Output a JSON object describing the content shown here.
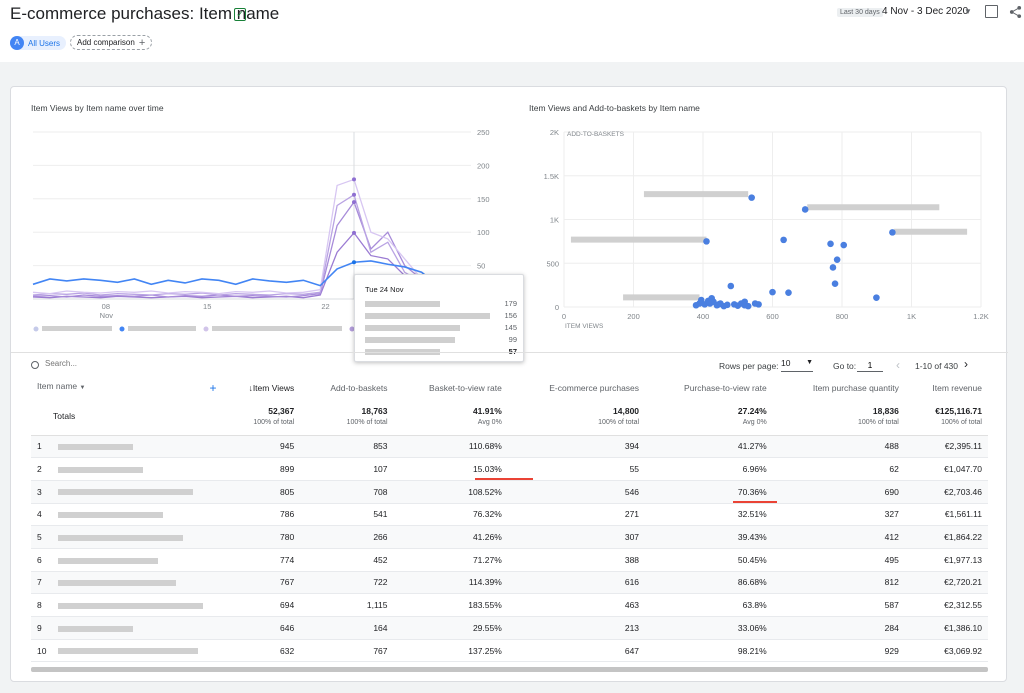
{
  "header": {
    "title": "E-commerce purchases: Item name",
    "date_label": "Last 30 days",
    "date_range": "4 Nov - 3 Dec 2020",
    "segment_avatar": "A",
    "segment_label": "All Users",
    "add_comparison": "Add comparison"
  },
  "line_chart": {
    "title": "Item Views by Item name over time",
    "x_ticks": [
      "08",
      "15",
      "22"
    ],
    "x_month": "Nov",
    "y_ticks": [
      "250",
      "200",
      "150",
      "100",
      "50"
    ],
    "chart_data": {
      "type": "line",
      "ylim": [
        0,
        250
      ],
      "series": [
        {
          "color": "#4285f4",
          "values": [
            22,
            30,
            27,
            30,
            28,
            25,
            30,
            22,
            28,
            24,
            30,
            28,
            22,
            30,
            27,
            25,
            28,
            20,
            45,
            55,
            57,
            52,
            48,
            40,
            20
          ]
        },
        {
          "color": "#d7c6f2",
          "values": [
            10,
            8,
            12,
            10,
            9,
            11,
            10,
            12,
            9,
            11,
            10,
            8,
            11,
            10,
            12,
            9,
            10,
            14,
            170,
            179,
            100,
            90,
            60,
            30,
            10
          ]
        },
        {
          "color": "#b9a3e3",
          "values": [
            6,
            8,
            7,
            9,
            6,
            8,
            7,
            6,
            8,
            7,
            9,
            6,
            8,
            7,
            6,
            8,
            7,
            10,
            140,
            156,
            70,
            85,
            40,
            25,
            8
          ]
        },
        {
          "color": "#a78bd9",
          "values": [
            4,
            5,
            3,
            6,
            4,
            5,
            4,
            6,
            3,
            5,
            4,
            6,
            4,
            5,
            4,
            3,
            5,
            8,
            110,
            145,
            75,
            100,
            50,
            30,
            6
          ]
        },
        {
          "color": "#9b7bd3",
          "values": [
            3,
            2,
            4,
            3,
            2,
            4,
            3,
            2,
            3,
            4,
            2,
            3,
            4,
            2,
            3,
            4,
            2,
            6,
            70,
            99,
            65,
            60,
            35,
            20,
            4
          ]
        }
      ]
    }
  },
  "tooltip": {
    "date": "Tue 24 Nov",
    "values": [
      "179",
      "156",
      "145",
      "99",
      "57"
    ]
  },
  "scatter_chart": {
    "title": "Item Views and Add-to-baskets by Item name",
    "y_axis_title": "ADD-TO-BASKETS",
    "x_axis_title": "ITEM VIEWS",
    "y_ticks": [
      "2K",
      "1.5K",
      "1K",
      "500",
      "0"
    ],
    "x_ticks": [
      "0",
      "200",
      "400",
      "600",
      "800",
      "1K",
      "1.2K"
    ],
    "chart_data": {
      "type": "scatter",
      "xlim": [
        0,
        1200
      ],
      "ylim": [
        0,
        2000
      ],
      "points": [
        [
          945,
          853
        ],
        [
          899,
          107
        ],
        [
          805,
          708
        ],
        [
          786,
          541
        ],
        [
          780,
          266
        ],
        [
          774,
          452
        ],
        [
          767,
          722
        ],
        [
          694,
          1115
        ],
        [
          646,
          164
        ],
        [
          632,
          767
        ],
        [
          540,
          1250
        ],
        [
          410,
          750
        ],
        [
          480,
          240
        ],
        [
          600,
          170
        ],
        [
          520,
          60
        ],
        [
          550,
          40
        ],
        [
          560,
          30
        ],
        [
          430,
          60
        ],
        [
          420,
          40
        ],
        [
          440,
          20
        ],
        [
          460,
          10
        ],
        [
          470,
          25
        ],
        [
          500,
          15
        ],
        [
          510,
          40
        ],
        [
          395,
          80
        ],
        [
          405,
          30
        ],
        [
          415,
          70
        ],
        [
          425,
          100
        ],
        [
          445,
          30
        ],
        [
          390,
          40
        ],
        [
          380,
          20
        ],
        [
          520,
          20
        ],
        [
          530,
          10
        ],
        [
          490,
          30
        ],
        [
          450,
          40
        ]
      ],
      "labels": [
        [
          230,
          1290,
          300
        ],
        [
          20,
          770,
          390
        ],
        [
          700,
          1140,
          380
        ],
        [
          950,
          860,
          210
        ],
        [
          170,
          110,
          220
        ]
      ]
    }
  },
  "table": {
    "search_placeholder": "Search...",
    "rows_per_page_label": "Rows per page:",
    "rows_per_page": "10",
    "goto_label": "Go to:",
    "goto_value": "1",
    "pager_text": "1-10 of 430",
    "headers": [
      "Item name",
      "↓Item Views",
      "Add-to-baskets",
      "Basket-to-view rate",
      "E-commerce purchases",
      "Purchase-to-view rate",
      "Item purchase quantity",
      "Item revenue"
    ],
    "totals_label": "Totals",
    "totals": [
      {
        "v": "52,367",
        "s": "100% of total"
      },
      {
        "v": "18,763",
        "s": "100% of total"
      },
      {
        "v": "41.91%",
        "s": "Avg 0%"
      },
      {
        "v": "14,800",
        "s": "100% of total"
      },
      {
        "v": "27.24%",
        "s": "Avg 0%"
      },
      {
        "v": "18,836",
        "s": "100% of total"
      },
      {
        "v": "€125,116.71",
        "s": "100% of total"
      }
    ],
    "rows": [
      [
        "1",
        "945",
        "853",
        "110.68%",
        "394",
        "41.27%",
        "488",
        "€2,395.11"
      ],
      [
        "2",
        "899",
        "107",
        "15.03%",
        "55",
        "6.96%",
        "62",
        "€1,047.70"
      ],
      [
        "3",
        "805",
        "708",
        "108.52%",
        "546",
        "70.36%",
        "690",
        "€2,703.46"
      ],
      [
        "4",
        "786",
        "541",
        "76.32%",
        "271",
        "32.51%",
        "327",
        "€1,561.11"
      ],
      [
        "5",
        "780",
        "266",
        "41.26%",
        "307",
        "39.43%",
        "412",
        "€1,864.22"
      ],
      [
        "6",
        "774",
        "452",
        "71.27%",
        "388",
        "50.45%",
        "495",
        "€1,977.13"
      ],
      [
        "7",
        "767",
        "722",
        "114.39%",
        "616",
        "86.68%",
        "812",
        "€2,720.21"
      ],
      [
        "8",
        "694",
        "1,115",
        "183.55%",
        "463",
        "63.8%",
        "587",
        "€2,312.55"
      ],
      [
        "9",
        "646",
        "164",
        "29.55%",
        "213",
        "33.06%",
        "284",
        "€1,386.10"
      ],
      [
        "10",
        "632",
        "767",
        "137.25%",
        "647",
        "98.21%",
        "929",
        "€3,069.92"
      ]
    ]
  },
  "colors": {
    "accent": "#1a73e8",
    "highlight": "#ea4335"
  }
}
